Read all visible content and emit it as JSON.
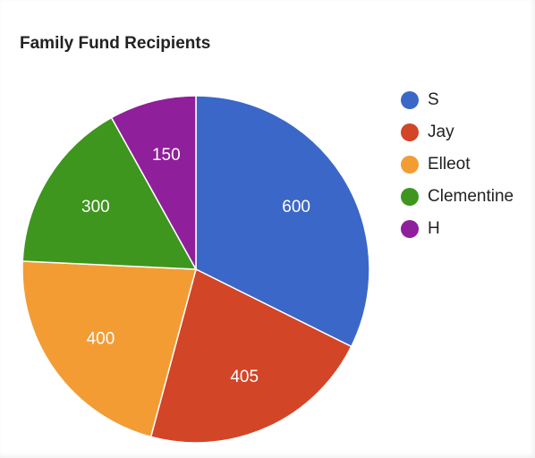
{
  "chart_data": {
    "type": "pie",
    "title": "Family Fund Recipients",
    "legend_position": "right",
    "categories": [
      "S",
      "Jay",
      "Elleot",
      "Clementine",
      "H"
    ],
    "values": [
      600,
      405,
      400,
      300,
      150
    ],
    "colors": [
      "#3b67c8",
      "#d24527",
      "#f39c34",
      "#3e961e",
      "#8f1f9a"
    ],
    "data_labels_shown": true
  }
}
